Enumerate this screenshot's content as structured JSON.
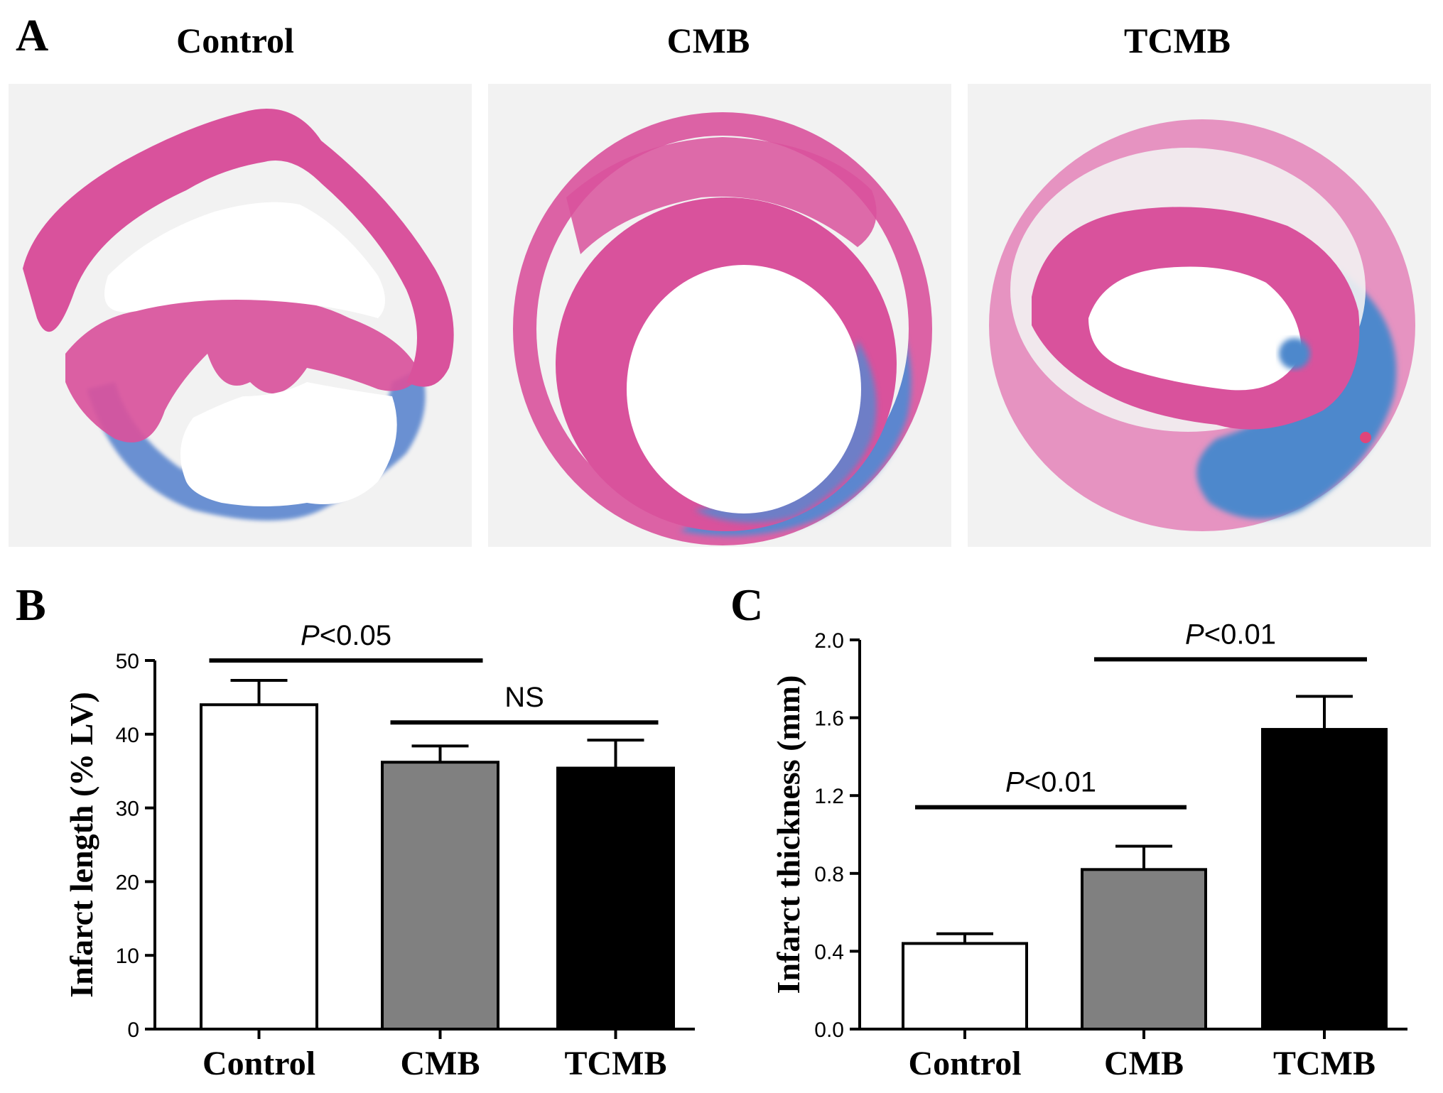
{
  "panels": {
    "a": {
      "letter": "A",
      "images": [
        {
          "title": "Control"
        },
        {
          "title": "CMB"
        },
        {
          "title": "TCMB"
        }
      ]
    },
    "b": {
      "letter": "B"
    },
    "c": {
      "letter": "C"
    }
  },
  "colors": {
    "myocardium": "#d9529c",
    "fibrosis": "#5b86cf",
    "background": "#f2f2f2",
    "control_bar": "#ffffff",
    "cmb_bar": "#808080",
    "tcmb_bar": "#000000"
  },
  "chart_data": [
    {
      "type": "bar",
      "panel": "B",
      "categories": [
        "Control",
        "CMB",
        "TCMB"
      ],
      "values": [
        44.0,
        36.2,
        35.4
      ],
      "errors": [
        3.3,
        2.2,
        3.8
      ],
      "bar_colors": [
        "#ffffff",
        "#808080",
        "#000000"
      ],
      "ylabel": "Infarct length (% LV)",
      "ylim": [
        0,
        50
      ],
      "yticks": [
        "0",
        "10",
        "20",
        "30",
        "40",
        "50"
      ],
      "ytick_values": [
        0,
        10,
        20,
        30,
        40,
        50
      ],
      "annotations": [
        {
          "prefix": "P",
          "text": "<0.05",
          "from": 0,
          "to": 1,
          "y": 50
        },
        {
          "prefix": "",
          "text": "NS",
          "from": 1,
          "to": 2,
          "y": 41.6
        }
      ]
    },
    {
      "type": "bar",
      "panel": "C",
      "categories": [
        "Control",
        "CMB",
        "TCMB"
      ],
      "values": [
        0.44,
        0.82,
        1.54
      ],
      "errors": [
        0.05,
        0.12,
        0.17
      ],
      "bar_colors": [
        "#ffffff",
        "#808080",
        "#000000"
      ],
      "ylabel": "Infarct thickness (mm)",
      "ylim": [
        0,
        2.0
      ],
      "yticks": [
        "0.0",
        "0.4",
        "0.8",
        "1.2",
        "1.6",
        "2.0"
      ],
      "ytick_values": [
        0,
        0.4,
        0.8,
        1.2,
        1.6,
        2.0
      ],
      "annotations": [
        {
          "prefix": "P",
          "text": "<0.01",
          "from": 0,
          "to": 1,
          "y": 1.14
        },
        {
          "prefix": "P",
          "text": "<0.01",
          "from": 1,
          "to": 2,
          "y": 1.9
        }
      ]
    }
  ]
}
